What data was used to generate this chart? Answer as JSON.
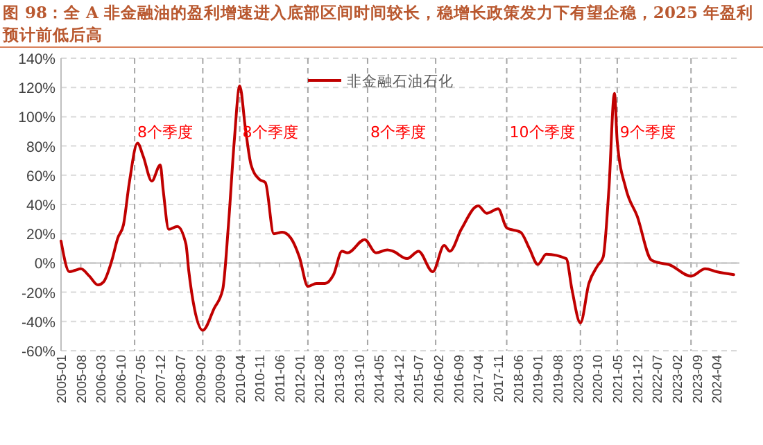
{
  "chart_data": {
    "type": "line",
    "title": "图 98：全 A 非金融油的盈利增速进入底部区间时间较长，稳增长政策发力下有望企稳，2025 年盈利预计前低后高",
    "x": [
      "2005-01",
      "2005-04",
      "2005-06",
      "2005-08",
      "2005-11",
      "2006-02",
      "2006-04",
      "2006-07",
      "2006-09",
      "2006-11",
      "2007-01",
      "2007-04",
      "2007-06",
      "2007-09",
      "2007-12",
      "2008-01",
      "2008-03",
      "2008-06",
      "2008-09",
      "2008-10",
      "2008-12",
      "2009-03",
      "2009-07",
      "2009-10",
      "2009-12",
      "2010-02",
      "2010-04",
      "2010-06",
      "2010-08",
      "2010-11",
      "2011-01",
      "2011-04",
      "2011-07",
      "2011-10",
      "2012-01",
      "2012-04",
      "2012-07",
      "2012-10",
      "2013-01",
      "2013-04",
      "2013-06",
      "2013-12",
      "2014-04",
      "2014-08",
      "2014-10",
      "2015-03",
      "2015-07",
      "2015-12",
      "2016-04",
      "2016-06",
      "2016-10",
      "2017-04",
      "2017-07",
      "2017-11",
      "2018-02",
      "2018-07",
      "2018-10",
      "2019-01",
      "2019-04",
      "2019-11",
      "2020-01",
      "2020-04",
      "2020-07",
      "2020-10",
      "2020-12",
      "2021-02",
      "2021-04",
      "2021-05",
      "2021-08",
      "2021-12",
      "2022-05",
      "2022-08",
      "2022-11",
      "2023-07",
      "2023-12",
      "2024-04",
      "2024-10"
    ],
    "series": [
      {
        "name": "非金融石油石化",
        "color": "#c00000",
        "values": [
          15,
          -6,
          -5,
          -4,
          -9,
          -15,
          -13,
          2,
          17,
          26,
          54,
          82,
          73,
          56,
          67,
          50,
          23,
          25,
          13,
          -5,
          -31,
          -46,
          -31,
          -18,
          26,
          83,
          121,
          92,
          67,
          57,
          55,
          20,
          21,
          17,
          4,
          -16,
          -14,
          -14,
          -8,
          8,
          7,
          16,
          7,
          9,
          8,
          3,
          8,
          -6,
          12,
          8,
          23,
          39,
          34,
          37,
          24,
          21,
          10,
          -1,
          6,
          3,
          -18,
          -41,
          -14,
          -2,
          4,
          51,
          116,
          83,
          51,
          32,
          2,
          0,
          -1,
          -9,
          -4,
          -6,
          -8
        ]
      }
    ],
    "xlim": [
      "2005-01",
      "2024-12"
    ],
    "xticks": [
      "2005-01",
      "2005-08",
      "2006-03",
      "2006-10",
      "2007-05",
      "2007-12",
      "2008-07",
      "2009-02",
      "2009-09",
      "2010-04",
      "2010-11",
      "2011-06",
      "2012-01",
      "2012-08",
      "2013-03",
      "2013-10",
      "2014-05",
      "2014-12",
      "2015-07",
      "2016-02",
      "2016-09",
      "2017-04",
      "2017-11",
      "2018-06",
      "2019-01",
      "2019-08",
      "2020-03",
      "2020-10",
      "2021-05",
      "2021-12",
      "2022-07",
      "2023-02",
      "2023-09",
      "2024-04"
    ],
    "ylim": [
      -60,
      140
    ],
    "yticks": [
      {
        "value": -60,
        "label": "-60%"
      },
      {
        "value": -40,
        "label": "-40%"
      },
      {
        "value": -20,
        "label": "-20%"
      },
      {
        "value": 0,
        "label": "0%"
      },
      {
        "value": 20,
        "label": "20%"
      },
      {
        "value": 40,
        "label": "40%"
      },
      {
        "value": 60,
        "label": "60%"
      },
      {
        "value": 80,
        "label": "80%"
      },
      {
        "value": 100,
        "label": "100%"
      },
      {
        "value": 120,
        "label": "120%"
      },
      {
        "value": 140,
        "label": "140%"
      }
    ],
    "grid": "y",
    "legend": "top",
    "marker": "none",
    "line_style": "solid",
    "ref_lines": [
      {
        "axis": "x",
        "value": "2007-03",
        "color": "#a6a6a6",
        "line_style": "dashed"
      },
      {
        "axis": "x",
        "value": "2009-03",
        "color": "#a6a6a6",
        "line_style": "dashed"
      },
      {
        "axis": "x",
        "value": "2010-04",
        "color": "#a6a6a6",
        "line_style": "dashed"
      },
      {
        "axis": "x",
        "value": "2012-04",
        "color": "#a6a6a6",
        "line_style": "dashed"
      },
      {
        "axis": "x",
        "value": "2014-01",
        "color": "#a6a6a6",
        "line_style": "dashed"
      },
      {
        "axis": "x",
        "value": "2016-01",
        "color": "#a6a6a6",
        "line_style": "dashed"
      },
      {
        "axis": "x",
        "value": "2018-02",
        "color": "#a6a6a6",
        "line_style": "dashed"
      },
      {
        "axis": "x",
        "value": "2020-04",
        "color": "#a6a6a6",
        "line_style": "dashed"
      },
      {
        "axis": "x",
        "value": "2021-05",
        "color": "#a6a6a6",
        "line_style": "dashed"
      },
      {
        "axis": "x",
        "value": "2023-07",
        "color": "#a6a6a6",
        "line_style": "dashed"
      }
    ],
    "annotations": [
      "8个季度",
      "8个季度",
      "8个季度",
      "10个季度",
      "9个季度"
    ]
  }
}
